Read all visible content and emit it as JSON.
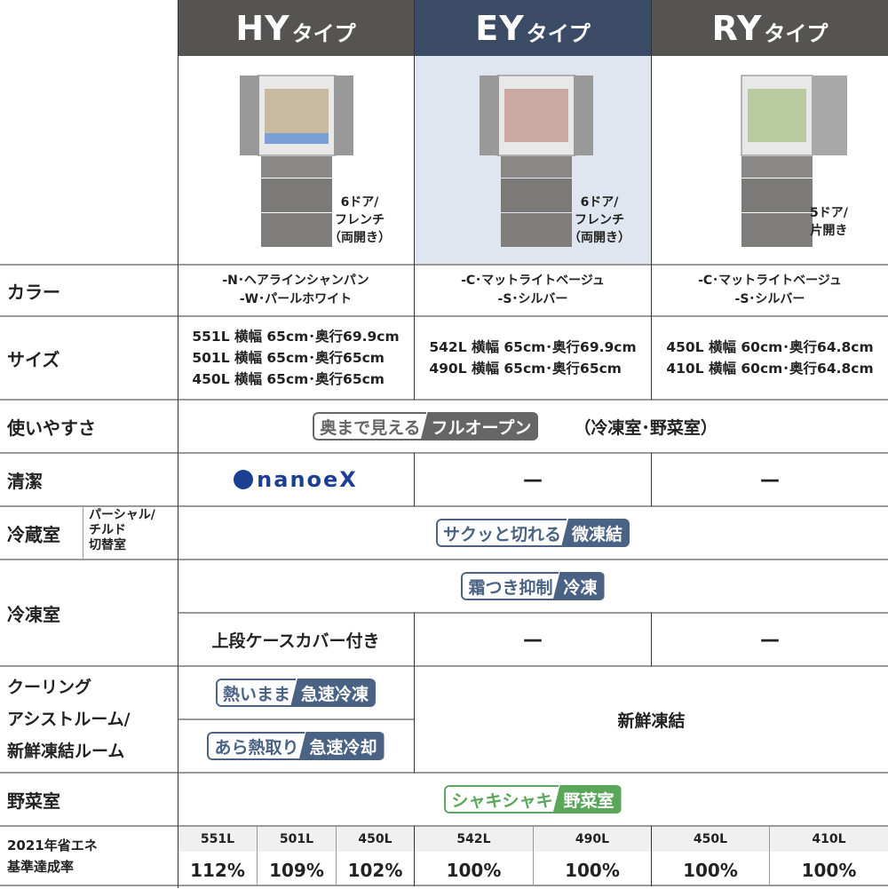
{
  "header": {
    "types": [
      {
        "code": "HY",
        "suffix": "タイプ",
        "color": "#565453"
      },
      {
        "code": "EY",
        "suffix": "タイプ",
        "color": "#3b4b66"
      },
      {
        "code": "RY",
        "suffix": "タイプ",
        "color": "#565453"
      }
    ]
  },
  "models": [
    {
      "doors": "6ドア/\nフレンチ\n（両開き）"
    },
    {
      "doors": "6ドア/\nフレンチ\n（両開き）"
    },
    {
      "doors": "5ドア/\n片開き"
    }
  ],
  "rows": {
    "color": {
      "label": "カラー",
      "values": [
        "-N･ヘアラインシャンパン\n-W･パールホワイト",
        "-C･マットライトベージュ\n-S･シルバー",
        "-C･マットライトベージュ\n-S･シルバー"
      ]
    },
    "size": {
      "label": "サイズ",
      "values": [
        [
          "551L 横幅 65cm･奥行69.9cm",
          "501L 横幅 65cm･奥行65cm",
          "450L 横幅 65cm･奥行65cm"
        ],
        [
          "542L 横幅 65cm･奥行69.9cm",
          "490L 横幅 65cm･奥行65cm"
        ],
        [
          "450L 横幅 60cm･奥行64.8cm",
          "410L 横幅 60cm･奥行64.8cm"
        ]
      ]
    },
    "usability": {
      "label": "使いやすさ",
      "badge_outline": "奥まで見える",
      "badge_fill": "フルオープン",
      "note": "（冷凍室･野菜室）",
      "color": "#666666"
    },
    "clean": {
      "label": "清潔",
      "logo": "nanoeX",
      "hy_logo_color": "#1c3f94",
      "ey": "—",
      "ry": "—"
    },
    "fridge": {
      "label": "冷蔵室",
      "sublabel": "パーシャル/\nチルド\n切替室",
      "badge_outline": "サクッと切れる",
      "badge_fill": "微凍結",
      "color": "#4a6284"
    },
    "freezer": {
      "label": "冷凍室",
      "badge_outline": "霜つき抑制",
      "badge_fill": "冷凍",
      "hy_sub": "上段ケースカバー付き",
      "ey_sub": "—",
      "ry_sub": "—",
      "color": "#4a6284"
    },
    "cooling": {
      "label": "クーリング\nアシストルーム/\n新鮮凍結ルーム",
      "badge1_outline": "熱いまま",
      "badge1_fill": "急速冷凍",
      "badge2_outline": "あら熱取り",
      "badge2_fill": "急速冷却",
      "other": "新鮮凍結",
      "color": "#4a6284"
    },
    "vegetable": {
      "label": "野菜室",
      "badge_outline": "シャキシャキ",
      "badge_fill": "野菜室",
      "color": "#5aa65a"
    },
    "energy": {
      "label": "2021年省エネ\n基準達成率",
      "items": [
        {
          "cap": "551L",
          "rate": "112%"
        },
        {
          "cap": "501L",
          "rate": "109%"
        },
        {
          "cap": "450L",
          "rate": "102%"
        },
        {
          "cap": "542L",
          "rate": "100%"
        },
        {
          "cap": "490L",
          "rate": "100%"
        },
        {
          "cap": "450L",
          "rate": "100%"
        },
        {
          "cap": "410L",
          "rate": "100%"
        }
      ]
    }
  }
}
